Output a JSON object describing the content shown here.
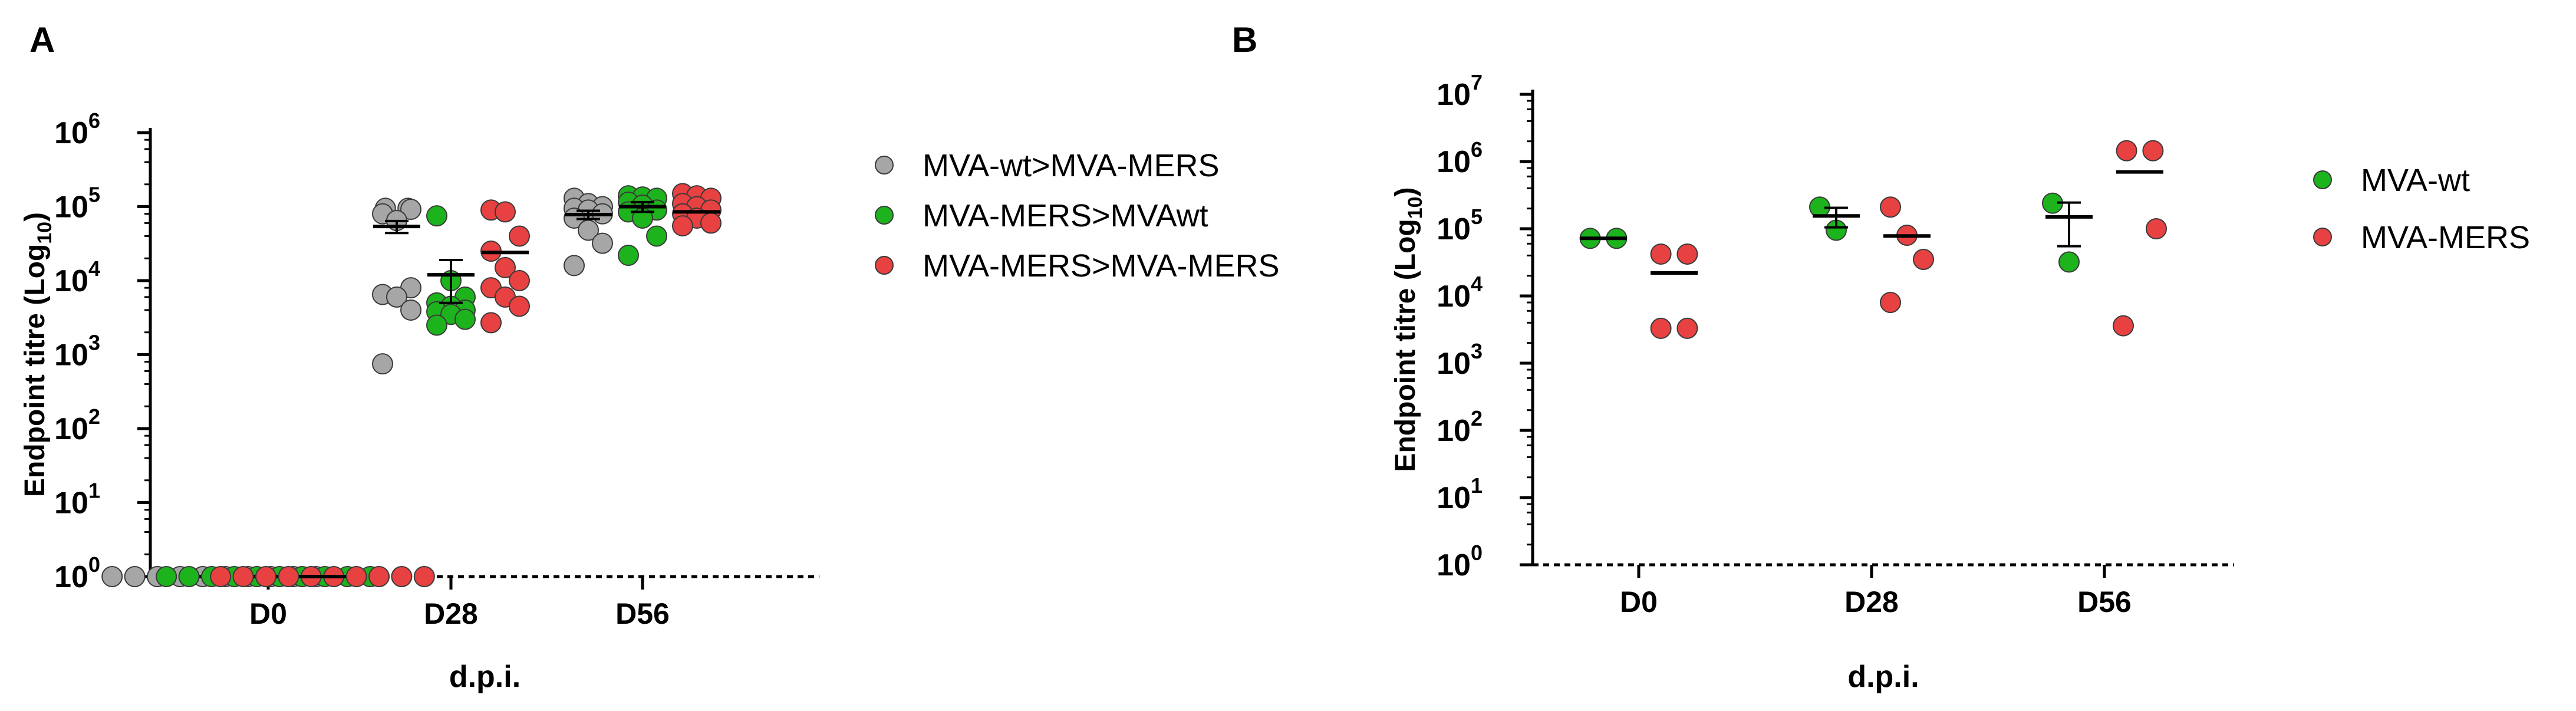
{
  "chart_data": [
    {
      "panel": "A",
      "type": "scatter",
      "title": "",
      "xlabel": "d.p.i.",
      "ylabel": "Endpoint titre (Log",
      "ylabel_sub": "10",
      "ylabel_close": ")",
      "y_scale": "log",
      "ylim": [
        1,
        1000000
      ],
      "y_tick_exponents": [
        0,
        1,
        2,
        3,
        4,
        5,
        6
      ],
      "y_tick_base": "10",
      "categories": [
        "D0",
        "D28",
        "D56"
      ],
      "grid": false,
      "legend_position": "right",
      "error_bars": "mean ± SEM",
      "series": [
        {
          "name": "MVA-wt>MVA-MERS",
          "color": "#a6a6a6",
          "values": [
            [
              1,
              1,
              1,
              1,
              1,
              1,
              1,
              1,
              1,
              1
            ],
            [
              95000,
              95000,
              92000,
              80000,
              65000,
              8000,
              6500,
              6000,
              4000,
              750
            ],
            [
              130000,
              110000,
              100000,
              95000,
              90000,
              80000,
              70000,
              48000,
              32000,
              16000
            ]
          ],
          "means": [
            1,
            54000,
            78000
          ],
          "sems": [
            0,
            10000,
            10000
          ]
        },
        {
          "name": "MVA-MERS>MVAwt",
          "color": "#1db31d",
          "values": [
            [
              1,
              1,
              1,
              1,
              1,
              1,
              1,
              1,
              1,
              1
            ],
            [
              75000,
              10000,
              6000,
              5000,
              4500,
              4000,
              3800,
              3500,
              3000,
              2500
            ],
            [
              140000,
              135000,
              130000,
              115000,
              105000,
              90000,
              85000,
              70000,
              40000,
              22000
            ]
          ],
          "means": [
            1,
            12000,
            100000
          ],
          "sems": [
            0,
            7000,
            15000
          ]
        },
        {
          "name": "MVA-MERS>MVA-MERS",
          "color": "#e84141",
          "values": [
            [
              1,
              1,
              1,
              1,
              1,
              1,
              1,
              1,
              1,
              1
            ],
            [
              90000,
              85000,
              40000,
              25000,
              15000,
              10000,
              8000,
              6000,
              4500,
              2700
            ],
            [
              150000,
              140000,
              130000,
              110000,
              100000,
              90000,
              80000,
              70000,
              60000,
              55000
            ]
          ],
          "means": [
            1,
            24000,
            85000
          ],
          "sems": [
            0,
            0,
            0
          ]
        }
      ]
    },
    {
      "panel": "B",
      "type": "scatter",
      "title": "",
      "xlabel": "d.p.i.",
      "ylabel": "Endpoint titre (Log",
      "ylabel_sub": "10",
      "ylabel_close": ")",
      "y_scale": "log",
      "ylim": [
        1,
        10000000
      ],
      "y_tick_exponents": [
        0,
        1,
        2,
        3,
        4,
        5,
        6,
        7
      ],
      "y_tick_base": "10",
      "categories": [
        "D0",
        "D28",
        "D56"
      ],
      "grid": false,
      "legend_position": "right",
      "error_bars": "mean ± SEM",
      "series": [
        {
          "name": "MVA-wt",
          "color": "#1db31d",
          "values": [
            [
              72000,
              72000
            ],
            [
              210000,
              95000
            ],
            [
              240000,
              32000
            ]
          ],
          "means": [
            72000,
            155000,
            150000
          ],
          "sems": [
            0,
            50000,
            95000
          ]
        },
        {
          "name": "MVA-MERS",
          "color": "#e84141",
          "values": [
            [
              42000,
              42000,
              3300,
              3300
            ],
            [
              210000,
              80000,
              35000,
              8000
            ],
            [
              1450000,
              1450000,
              100000,
              3600
            ]
          ],
          "means": [
            22000,
            78000,
            700000
          ],
          "sems": [
            0,
            0,
            0
          ]
        }
      ]
    }
  ]
}
